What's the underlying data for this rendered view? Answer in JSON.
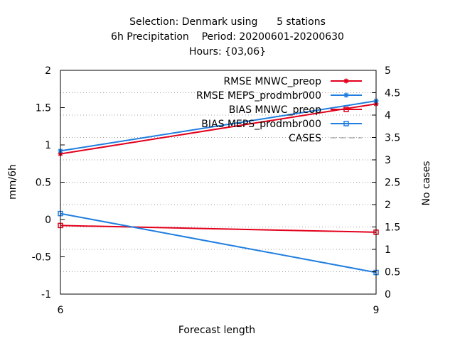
{
  "chart_data": {
    "type": "line",
    "title_lines": [
      "Selection: Denmark using      5 stations",
      "6h Precipitation    Period: 20200601-20200630",
      "Hours: {03,06}"
    ],
    "xlabel": "Forecast length",
    "ylabel": "mm/6h",
    "y2label": "No cases",
    "x": [
      6,
      9
    ],
    "xlim": [
      6,
      9
    ],
    "ylim": [
      -1,
      2
    ],
    "y2lim": [
      0,
      5
    ],
    "xticks": [
      6,
      9
    ],
    "yticks": [
      -1,
      -0.5,
      0,
      0.5,
      1,
      1.5,
      2
    ],
    "y2ticks": [
      0,
      0.5,
      1,
      1.5,
      2,
      2.5,
      3,
      3.5,
      4,
      4.5,
      5
    ],
    "grid": true,
    "legend_position": "top-right",
    "series": [
      {
        "name": "RMSE MNWC_preop",
        "axis": "y",
        "color": "#e3001b",
        "marker": "star",
        "dash": "none",
        "values": [
          0.88,
          1.55
        ]
      },
      {
        "name": "RMSE MEPS_prodmbr000",
        "axis": "y",
        "color": "#1f7ee0",
        "marker": "star",
        "dash": "none",
        "values": [
          0.92,
          1.59
        ]
      },
      {
        "name": "BIAS MNWC_preop",
        "axis": "y",
        "color": "#e3001b",
        "marker": "square",
        "dash": "none",
        "values": [
          -0.08,
          -0.17
        ]
      },
      {
        "name": "BIAS MEPS_prodmbr000",
        "axis": "y",
        "color": "#1f7ee0",
        "marker": "square",
        "dash": "none",
        "values": [
          0.08,
          -0.71
        ]
      },
      {
        "name": "CASES",
        "axis": "y2",
        "color": "#8c8c8c",
        "marker": "none",
        "dash": "dashed",
        "values": [
          5,
          5
        ]
      }
    ]
  }
}
